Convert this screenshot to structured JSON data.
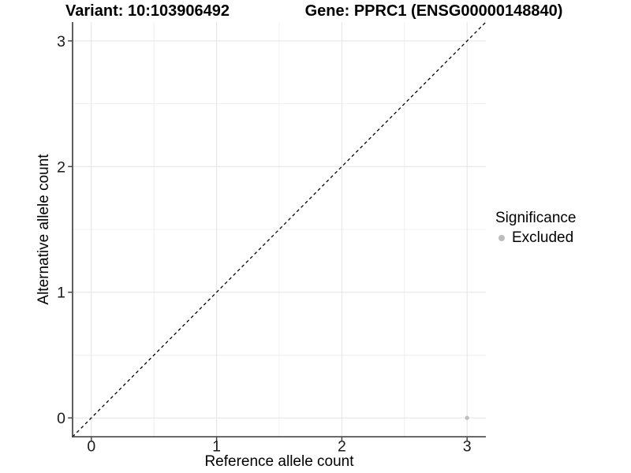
{
  "titles": {
    "variant": "Variant: 10:103906492",
    "gene": "Gene: PPRC1 (ENSG00000148840)"
  },
  "axes": {
    "x_label": "Reference allele count",
    "y_label": "Alternative allele count"
  },
  "legend": {
    "title": "Significance",
    "items": [
      {
        "label": "Excluded",
        "color": "#bdbdbd"
      }
    ]
  },
  "chart_data": {
    "type": "scatter",
    "title_left": "Variant: 10:103906492",
    "title_right": "Gene: PPRC1 (ENSG00000148840)",
    "xlabel": "Reference allele count",
    "ylabel": "Alternative allele count",
    "xlim": [
      -0.15,
      3.15
    ],
    "ylim": [
      -0.15,
      3.15
    ],
    "x_ticks": [
      0,
      1,
      2,
      3
    ],
    "y_ticks": [
      0,
      1,
      2,
      3
    ],
    "grid": {
      "major": true,
      "minor": true
    },
    "legend_position": "right",
    "series": [
      {
        "name": "Excluded",
        "color": "#bdbdbd",
        "points": [
          [
            3,
            0
          ]
        ]
      }
    ],
    "reference_line": {
      "slope": 1,
      "intercept": 0,
      "style": "dashed",
      "color": "#000000"
    }
  },
  "colors": {
    "point": "#bdbdbd",
    "grid_major": "#e4e4e4",
    "grid_minor": "#f0f0f0",
    "axis": "#383838",
    "tick_text": "#1a1a1a",
    "background": "#ffffff"
  }
}
